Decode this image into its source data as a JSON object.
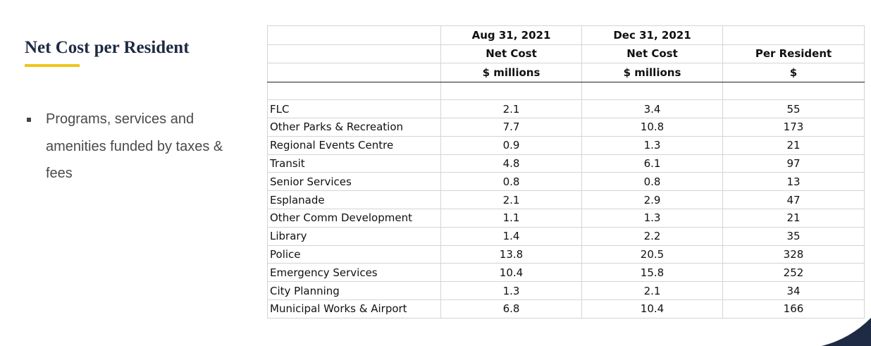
{
  "slide": {
    "title": "Net Cost per Resident",
    "bullets": [
      "Programs, services and amenities funded by taxes & fees"
    ]
  },
  "table": {
    "headers": [
      [
        "",
        "Aug 31, 2021",
        "Dec 31, 2021",
        ""
      ],
      [
        "",
        "Net Cost",
        "Net Cost",
        "Per Resident"
      ],
      [
        "",
        "$ millions",
        "$ millions",
        "$"
      ]
    ],
    "rows": [
      [
        "FLC",
        "2.1",
        "3.4",
        "55"
      ],
      [
        "Other Parks & Recreation",
        "7.7",
        "10.8",
        "173"
      ],
      [
        "Regional Events Centre",
        "0.9",
        "1.3",
        "21"
      ],
      [
        "Transit",
        "4.8",
        "6.1",
        "97"
      ],
      [
        "Senior Services",
        "0.8",
        "0.8",
        "13"
      ],
      [
        "Esplanade",
        "2.1",
        "2.9",
        "47"
      ],
      [
        "Other Comm Development",
        "1.1",
        "1.3",
        "21"
      ],
      [
        "Library",
        "1.4",
        "2.2",
        "35"
      ],
      [
        "Police",
        "13.8",
        "20.5",
        "328"
      ],
      [
        "Emergency Services",
        "10.4",
        "15.8",
        "252"
      ],
      [
        "City Planning",
        "1.3",
        "2.1",
        "34"
      ],
      [
        "Municipal Works & Airport",
        "6.8",
        "10.4",
        "166"
      ]
    ]
  },
  "colors": {
    "title": "#1f2a44",
    "accent": "#f0c419",
    "corner": "#1f2a44"
  }
}
